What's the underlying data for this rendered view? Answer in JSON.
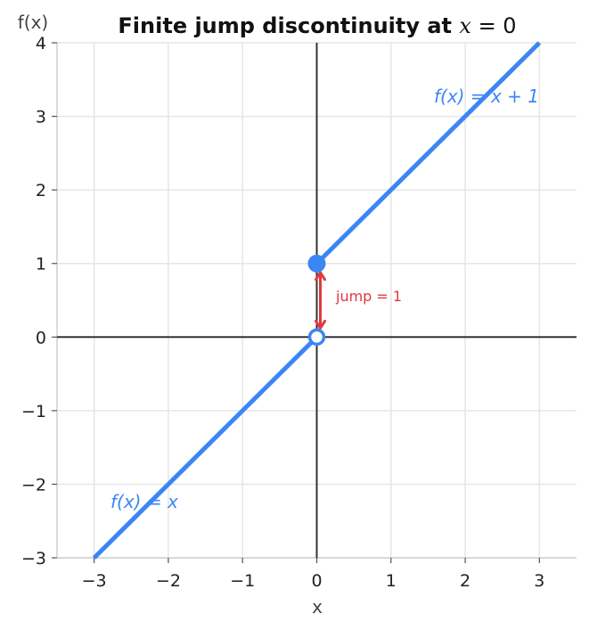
{
  "chart_data": {
    "type": "line",
    "title": "Finite jump discontinuity at",
    "title_math_var": "x",
    "title_math_eq": " = 0",
    "xlabel": "x",
    "ylabel": "f(x)",
    "xlim": [
      -3.5,
      3.5
    ],
    "ylim": [
      -3,
      4
    ],
    "xticks": [
      -3,
      -2,
      -1,
      0,
      1,
      2,
      3
    ],
    "yticks": [
      -3,
      -2,
      -1,
      0,
      1,
      2,
      3,
      4
    ],
    "xtick_labels": [
      "−3",
      "−2",
      "−1",
      "0",
      "1",
      "2",
      "3"
    ],
    "ytick_labels": [
      "−3",
      "−2",
      "−1",
      "0",
      "1",
      "2",
      "3",
      "4"
    ],
    "grid": true,
    "series": [
      {
        "name": "f(x) = x",
        "x": [
          -3,
          0
        ],
        "y": [
          -3,
          0
        ],
        "color": "#3b86f5"
      },
      {
        "name": "f(x) = x + 1",
        "x": [
          0,
          3
        ],
        "y": [
          1,
          4
        ],
        "color": "#3b86f5"
      }
    ],
    "points": [
      {
        "x": 0,
        "y": 0,
        "style": "open"
      },
      {
        "x": 0,
        "y": 1,
        "style": "filled"
      }
    ],
    "jump": {
      "x": 0,
      "from": 0,
      "to": 1,
      "label": "jump = 1",
      "color": "#e03a3e"
    },
    "colors": {
      "line": "#3b86f5",
      "jump": "#e03a3e",
      "axis": "#333333",
      "grid": "#e6e6e6"
    }
  }
}
